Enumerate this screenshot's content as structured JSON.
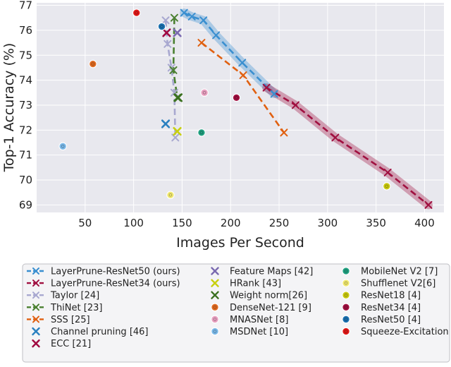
{
  "chart_data": {
    "type": "scatter",
    "xlabel": "Images Per Second",
    "ylabel": "Top-1 Accuracy (%)",
    "xlim": [
      0,
      420
    ],
    "ylim": [
      68.7,
      77.1
    ],
    "xticks": [
      50,
      100,
      150,
      200,
      250,
      300,
      350,
      400
    ],
    "yticks": [
      69,
      70,
      71,
      72,
      73,
      74,
      75,
      76,
      77
    ],
    "grid": true,
    "legend_position": "below-plot",
    "lines": [
      {
        "name": "LayerPrune-ResNet50 (ours)",
        "color": "#3a8fd0",
        "style": "dashed",
        "marker": "x",
        "band": true,
        "points": [
          [
            152,
            76.7
          ],
          [
            160,
            76.55
          ],
          [
            172,
            76.4
          ],
          [
            185,
            75.8
          ],
          [
            212,
            74.7
          ],
          [
            245,
            73.45
          ]
        ]
      },
      {
        "name": "LayerPrune-ResNet34 (ours)",
        "color": "#a01040",
        "style": "dashed",
        "marker": "x",
        "band": true,
        "points": [
          [
            237,
            73.7
          ],
          [
            267,
            73.0
          ],
          [
            308,
            71.7
          ],
          [
            362,
            70.3
          ],
          [
            404,
            69.0
          ]
        ]
      },
      {
        "name": "Taylor [24]",
        "color": "#a8a8d0",
        "style": "dashed",
        "marker": "x",
        "band": false,
        "points": [
          [
            133,
            76.4
          ],
          [
            135,
            75.45
          ],
          [
            139,
            74.5
          ],
          [
            142,
            73.5
          ],
          [
            143,
            71.7
          ]
        ]
      },
      {
        "name": "ThiNet [23]",
        "color": "#4a8030",
        "style": "dashed",
        "marker": "x",
        "band": false,
        "points": [
          [
            142,
            76.5
          ],
          [
            141,
            74.4
          ],
          [
            145,
            73.3
          ]
        ]
      },
      {
        "name": "SSS [25]",
        "color": "#e06010",
        "style": "dashed",
        "marker": "x",
        "band": false,
        "points": [
          [
            170,
            75.5
          ],
          [
            213,
            74.2
          ],
          [
            255,
            71.9
          ]
        ]
      }
    ],
    "points": [
      {
        "name": "Channel pruning [46]",
        "color": "#2a80c0",
        "marker": "x",
        "x": 133,
        "y": 72.25
      },
      {
        "name": "ECC [21]",
        "color": "#a00840",
        "marker": "x",
        "x": 134,
        "y": 75.9
      },
      {
        "name": "Feature Maps [42]",
        "color": "#7a6ab0",
        "marker": "x",
        "x": 145,
        "y": 75.9
      },
      {
        "name": "HRank [43]",
        "color": "#c8d010",
        "marker": "x",
        "x": 145,
        "y": 71.95
      },
      {
        "name": "Weight norm[26]",
        "color": "#3a7020",
        "marker": "x",
        "x": 146,
        "y": 73.3
      },
      {
        "name": "DenseNet-121 [9]",
        "color": "#e06a20",
        "marker": "o",
        "x": 58,
        "y": 74.65
      },
      {
        "name": "MNASNet [8]",
        "color": "#e8a0c0",
        "marker": "o",
        "x": 173,
        "y": 73.5
      },
      {
        "name": "MSDNet [10]",
        "color": "#7ab8e8",
        "marker": "o",
        "x": 27,
        "y": 71.35
      },
      {
        "name": "MobileNet V2 [7]",
        "color": "#20a080",
        "marker": "o",
        "x": 170,
        "y": 71.9
      },
      {
        "name": "Shufflenet V2[6]",
        "color": "#f0e870",
        "marker": "o",
        "x": 138,
        "y": 69.4
      },
      {
        "name": "ResNet18 [4]",
        "color": "#c8c810",
        "marker": "o",
        "x": 361,
        "y": 69.75
      },
      {
        "name": "ResNet34 [4]",
        "color": "#a01040",
        "marker": "o",
        "x": 206,
        "y": 73.3
      },
      {
        "name": "ResNet50 [4]",
        "color": "#1a70b0",
        "marker": "o",
        "x": 129,
        "y": 76.15
      },
      {
        "name": "Squeeze-Excitation",
        "color": "#e01818",
        "marker": "o",
        "x": 103,
        "y": 76.7
      }
    ],
    "legend": {
      "columns": [
        [
          {
            "label": "LayerPrune-ResNet50 (ours)",
            "color": "#3a8fd0",
            "kind": "line-x"
          },
          {
            "label": "LayerPrune-ResNet34 (ours)",
            "color": "#a01040",
            "kind": "line-x"
          },
          {
            "label": "Taylor [24]",
            "color": "#a8a8d0",
            "kind": "line-x"
          },
          {
            "label": "ThiNet [23]",
            "color": "#4a8030",
            "kind": "line-x"
          },
          {
            "label": "SSS [25]",
            "color": "#e06010",
            "kind": "line-x"
          },
          {
            "label": "Channel pruning [46]",
            "color": "#2a80c0",
            "kind": "x"
          },
          {
            "label": "ECC [21]",
            "color": "#a00840",
            "kind": "x"
          }
        ],
        [
          {
            "label": "Feature Maps [42]",
            "color": "#7a6ab0",
            "kind": "x"
          },
          {
            "label": "HRank [43]",
            "color": "#c8d010",
            "kind": "x"
          },
          {
            "label": "Weight norm[26]",
            "color": "#3a7020",
            "kind": "x"
          },
          {
            "label": "DenseNet-121 [9]",
            "color": "#e06a20",
            "kind": "o"
          },
          {
            "label": "MNASNet [8]",
            "color": "#e8a0c0",
            "kind": "o"
          },
          {
            "label": "MSDNet [10]",
            "color": "#7ab8e8",
            "kind": "o"
          }
        ],
        [
          {
            "label": "MobileNet V2 [7]",
            "color": "#20a080",
            "kind": "o"
          },
          {
            "label": "Shufflenet V2[6]",
            "color": "#f0e870",
            "kind": "o"
          },
          {
            "label": "ResNet18 [4]",
            "color": "#c8c810",
            "kind": "o"
          },
          {
            "label": "ResNet34 [4]",
            "color": "#a01040",
            "kind": "o"
          },
          {
            "label": "ResNet50 [4]",
            "color": "#1a70b0",
            "kind": "o"
          },
          {
            "label": "Squeeze-Excitation",
            "color": "#e01818",
            "kind": "o"
          }
        ]
      ]
    }
  }
}
